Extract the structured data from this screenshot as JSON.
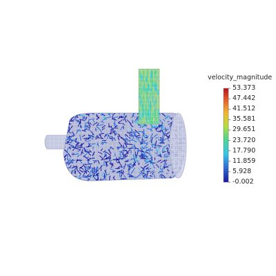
{
  "chart_data": {
    "type": "heatmap",
    "subject": "3D CFD velocity field rendering (vectors on a horizontal cylinder with vertical inlet pipe)",
    "colorbar": {
      "title": "velocity_magnitude",
      "range": [
        -0.002,
        53.373
      ],
      "ticks": [
        "53.373",
        "47.442",
        "41.512",
        "35.581",
        "29.651",
        "23.720",
        "17.790",
        "11.859",
        "5.928",
        "-0.002"
      ],
      "colormap": [
        "#1a1aa0",
        "#2f6fd6",
        "#33c8e8",
        "#4ed690",
        "#b8e03a",
        "#f2b632",
        "#e65a2a",
        "#b8121b"
      ]
    },
    "colors": {
      "body_fill": "#b9bed8",
      "low_velocity": "#1d2fb5",
      "mid_velocity": "#3ca9e6",
      "inlet_velocity": "#7ee06a"
    }
  }
}
